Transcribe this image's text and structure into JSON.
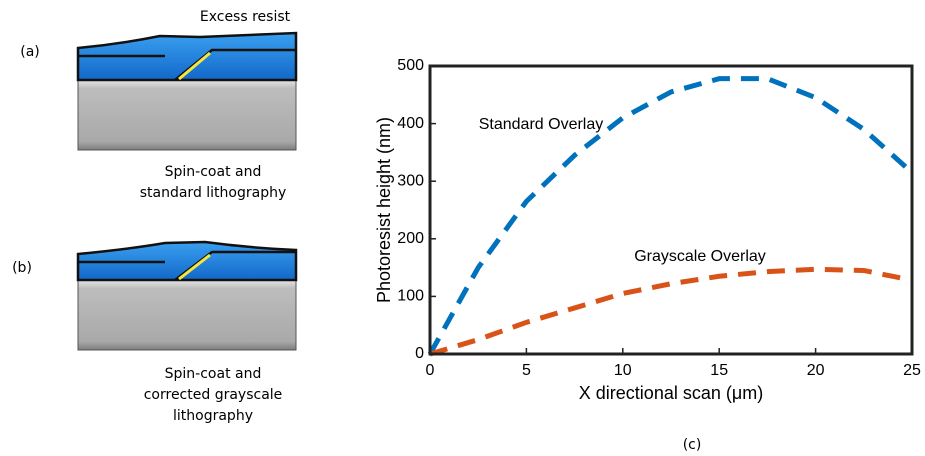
{
  "figure": {
    "panel_labels": [
      "(a)",
      "(b)",
      "(c)"
    ],
    "excess_label": "Excess resist",
    "caption_a": [
      "Spin-coat and",
      "standard lithography"
    ],
    "caption_b": [
      "Spin-coat and",
      "corrected grayscale",
      "lithography"
    ]
  },
  "chart_data": {
    "type": "line",
    "xlabel": "X directional scan (μm)",
    "ylabel": "Photoresist height (nm)",
    "x": [
      0,
      2.5,
      5,
      7.5,
      10,
      12.5,
      15,
      17.5,
      20,
      22.5,
      25
    ],
    "series": [
      {
        "name": "Standard Overlay",
        "color": "#0072bd",
        "values": [
          0,
          150,
          265,
          345,
          410,
          455,
          478,
          478,
          445,
          390,
          315
        ]
      },
      {
        "name": "Grayscale Overlay",
        "color": "#d95319",
        "values": [
          0,
          25,
          55,
          80,
          105,
          122,
          135,
          143,
          147,
          145,
          128
        ]
      }
    ],
    "xlim": [
      0,
      25
    ],
    "ylim": [
      0,
      500
    ],
    "xticks": [
      0,
      5,
      10,
      15,
      20,
      25
    ],
    "yticks": [
      0,
      100,
      200,
      300,
      400,
      500
    ],
    "dashed": true
  }
}
